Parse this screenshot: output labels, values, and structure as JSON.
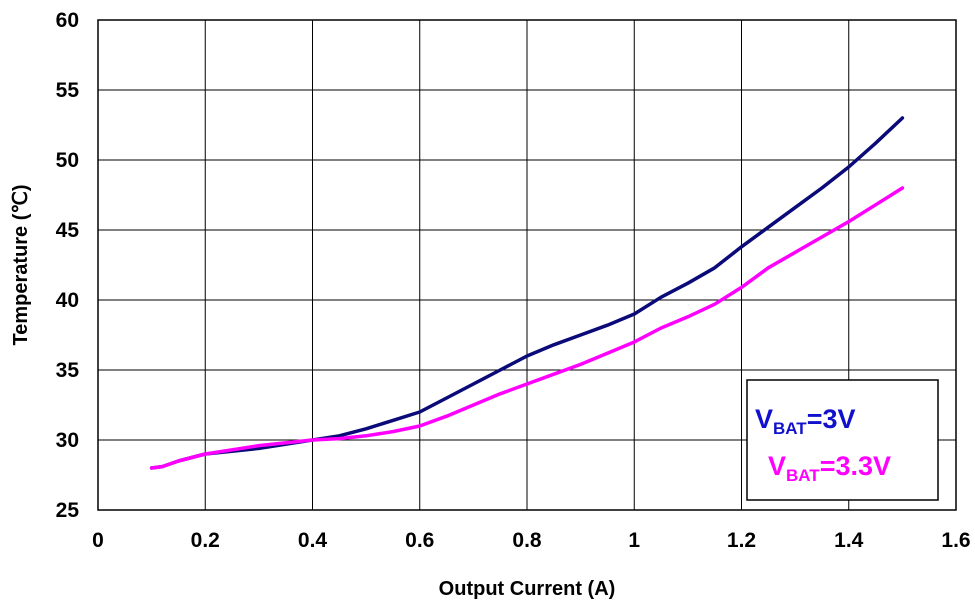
{
  "chart_data": {
    "type": "line",
    "xlabel": "Output Current (A)",
    "ylabel": "Temperature (℃)",
    "xlim": [
      0,
      1.6
    ],
    "ylim": [
      25,
      60
    ],
    "x_ticks": [
      "0",
      "0.2",
      "0.4",
      "0.6",
      "0.8",
      "1",
      "1.2",
      "1.4",
      "1.6"
    ],
    "y_ticks": [
      "25",
      "30",
      "35",
      "40",
      "45",
      "50",
      "55",
      "60"
    ],
    "grid": true,
    "legend_position": "bottom-right",
    "series": [
      {
        "name_main": "V",
        "name_sub": "BAT",
        "name_suffix": "=3V",
        "color": "#0a0a78",
        "legend_color": "#1111cc",
        "x": [
          0.1,
          0.12,
          0.15,
          0.2,
          0.3,
          0.4,
          0.45,
          0.5,
          0.55,
          0.6,
          0.65,
          0.7,
          0.75,
          0.8,
          0.85,
          0.9,
          0.95,
          1.0,
          1.05,
          1.1,
          1.15,
          1.2,
          1.25,
          1.3,
          1.35,
          1.4,
          1.45,
          1.5
        ],
        "y": [
          28.0,
          28.1,
          28.5,
          29.0,
          29.4,
          30.0,
          30.3,
          30.8,
          31.4,
          32.0,
          33.0,
          34.0,
          35.0,
          36.0,
          36.8,
          37.5,
          38.2,
          39.0,
          40.2,
          41.2,
          42.3,
          43.8,
          45.2,
          46.6,
          48.0,
          49.5,
          51.2,
          53.0
        ]
      },
      {
        "name_main": "V",
        "name_sub": "BAT",
        "name_suffix": "=3.3V",
        "color": "#ff00ff",
        "legend_color": "#ff00ff",
        "x": [
          0.1,
          0.12,
          0.15,
          0.2,
          0.3,
          0.4,
          0.45,
          0.5,
          0.55,
          0.6,
          0.65,
          0.7,
          0.75,
          0.8,
          0.85,
          0.9,
          0.95,
          1.0,
          1.05,
          1.1,
          1.15,
          1.2,
          1.25,
          1.3,
          1.35,
          1.4,
          1.45,
          1.5
        ],
        "y": [
          28.0,
          28.1,
          28.5,
          29.0,
          29.6,
          30.0,
          30.1,
          30.3,
          30.6,
          31.0,
          31.7,
          32.5,
          33.3,
          34.0,
          34.7,
          35.4,
          36.2,
          37.0,
          38.0,
          38.8,
          39.7,
          40.9,
          42.3,
          43.4,
          44.5,
          45.6,
          46.8,
          48.0
        ]
      }
    ]
  }
}
